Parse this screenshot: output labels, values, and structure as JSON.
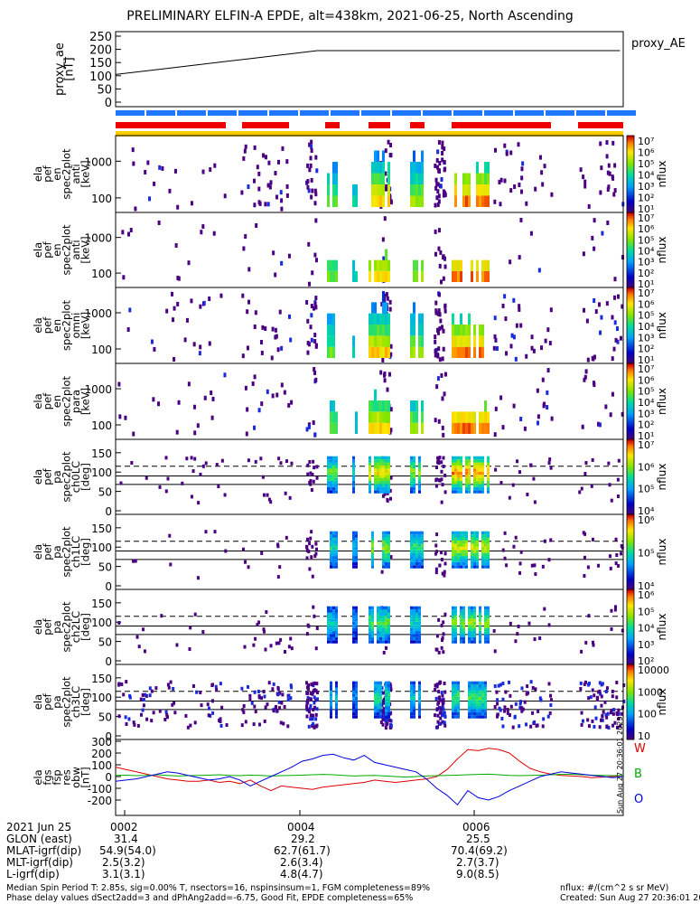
{
  "title": "PRELIMINARY ELFIN-A EPDE, alt=438km, 2021-06-25, North Ascending",
  "created_vertical": "Sun Aug 27 20:36:01 2023",
  "panels": [
    {
      "ylabel": [
        "proxy_ae",
        "[nT]"
      ],
      "ticks": [
        "250",
        "200",
        "150",
        "100",
        "50",
        "0"
      ],
      "right": "proxy_AE"
    },
    {
      "ylabel": [
        "ela",
        "pef",
        "en",
        "spec2plot",
        "anti",
        "[keV]"
      ],
      "ticks": [
        "1000",
        "100"
      ],
      "cb": [
        "10⁷",
        "10⁶",
        "10⁵",
        "10⁴",
        "10³",
        "10²",
        "10¹"
      ],
      "cblabel": "nflux"
    },
    {
      "ylabel": [
        "ela",
        "pef",
        "en",
        "spec2plot",
        "anti",
        "[keV]"
      ],
      "ticks": [
        "1000",
        "100"
      ],
      "cb": [
        "10⁷",
        "10⁶",
        "10⁵",
        "10⁴",
        "10³",
        "10²",
        "10¹"
      ],
      "cblabel": "nflux"
    },
    {
      "ylabel": [
        "ela",
        "pef",
        "en",
        "spec2plot",
        "omni",
        "[keV]"
      ],
      "ticks": [
        "1000",
        "100"
      ],
      "cb": [
        "10⁷",
        "10⁶",
        "10⁵",
        "10⁴",
        "10³",
        "10²",
        "10¹"
      ],
      "cblabel": "nflux"
    },
    {
      "ylabel": [
        "ela",
        "pef",
        "en",
        "spec2plot",
        "para",
        "[keV]"
      ],
      "ticks": [
        "1000",
        "100"
      ],
      "cb": [
        "10⁷",
        "10⁶",
        "10⁵",
        "10⁴",
        "10³",
        "10²",
        "10¹"
      ],
      "cblabel": "nflux"
    },
    {
      "ylabel": [
        "ela",
        "pef",
        "pa",
        "spec2plot",
        "ch0LC",
        "[deg]"
      ],
      "ticks": [
        "150",
        "100",
        "50",
        "0"
      ],
      "cb": [
        "10⁷",
        "10⁶",
        "10⁵",
        "10⁴"
      ],
      "cblabel": "nflux"
    },
    {
      "ylabel": [
        "ela",
        "pef",
        "pa",
        "spec2plot",
        "ch1LC",
        "[deg]"
      ],
      "ticks": [
        "150",
        "100",
        "50",
        "0"
      ],
      "cb": [
        "10⁶",
        "10⁵",
        "10⁴"
      ],
      "cblabel": "nflux"
    },
    {
      "ylabel": [
        "ela",
        "pef",
        "pa",
        "spec2plot",
        "ch2LC",
        "[deg]"
      ],
      "ticks": [
        "150",
        "100",
        "50",
        "0"
      ],
      "cb": [
        "10⁶",
        "10⁵",
        "10⁴",
        "10³",
        "10²"
      ],
      "cblabel": "nflux"
    },
    {
      "ylabel": [
        "ela",
        "pef",
        "pa",
        "spec2plot",
        "ch3LC",
        "[deg]"
      ],
      "ticks": [
        "150",
        "100",
        "50",
        "0"
      ],
      "cb": [
        "10000",
        "1000",
        "100",
        "10"
      ],
      "cblabel": "nflux"
    },
    {
      "ylabel": [
        "ela",
        "fgs",
        "fsp",
        "res",
        "obw",
        "[nT]"
      ],
      "ticks": [
        "300",
        "200",
        "100",
        "0",
        "-100",
        "-200"
      ],
      "legend": [
        "W",
        "B",
        "O"
      ]
    }
  ],
  "footer": {
    "rows": [
      [
        "2021 Jun 25",
        "0002",
        "0004",
        "0006"
      ],
      [
        "GLON (east)",
        "31.4",
        "29.2",
        "25.5"
      ],
      [
        "MLAT-igrf(dip)",
        "54.9(54.0)",
        "62.7(61.7)",
        "70.4(69.2)"
      ],
      [
        "MLT-igrf(dip)",
        "2.5(3.2)",
        "2.6(3.4)",
        "2.7(3.7)"
      ],
      [
        "L-igrf(dip)",
        "3.1(3.1)",
        "4.8(4.7)",
        "9.0(8.5)"
      ]
    ],
    "note1": "Median Spin Period T: 2.85s, sig=0.00% T, nsectors=16, nspinsinsum=1, FGM completeness=89%",
    "note2": "Phase delay values dSect2add=3 and dPhAng2add=-6.75, Good Fit, EPDE completeness=65%",
    "units": "nflux: #/(cm^2 s sr MeV)",
    "created": "Created: Sun Aug 27 20:36:01 2023"
  },
  "chart_data": {
    "type": "line",
    "title": "PRELIMINARY ELFIN-A EPDE, alt=438km, 2021-06-25, North Ascending",
    "x_ticks": [
      "0002",
      "0004",
      "0006"
    ],
    "proxy_ae": {
      "ylabel": "proxy_ae [nT]",
      "ylim": [
        0,
        250
      ],
      "x_min": [
        0,
        1,
        2,
        3,
        4,
        5,
        6,
        7,
        7.5
      ],
      "values": [
        105,
        135,
        165,
        195,
        195,
        195,
        195,
        195,
        195
      ]
    },
    "fgs_residuals": {
      "ylabel": "[nT]",
      "ylim": [
        -300,
        300
      ],
      "series": [
        {
          "name": "W",
          "color": "#dd0000",
          "values": [
            80,
            60,
            40,
            20,
            0,
            -20,
            -30,
            -40,
            -40,
            -30,
            -50,
            -40,
            -60,
            -30,
            -80,
            -120,
            -80,
            -90,
            -100,
            -110,
            -90,
            -80,
            -70,
            -60,
            -50,
            -30,
            -40,
            -50,
            -40,
            -30,
            -20,
            0,
            60,
            150,
            230,
            220,
            240,
            230,
            200,
            130,
            70,
            40,
            20,
            10,
            5,
            0,
            -10,
            -5,
            0,
            10
          ]
        },
        {
          "name": "B",
          "color": "#00aa00",
          "values": [
            10,
            12,
            8,
            10,
            15,
            10,
            5,
            8,
            10,
            12,
            15,
            10,
            8,
            12,
            10,
            5,
            8,
            10,
            12,
            15,
            18,
            15,
            10,
            5,
            8,
            10,
            5,
            0,
            -5,
            0,
            5,
            8,
            10,
            12,
            15,
            18,
            20,
            15,
            10,
            8,
            10,
            12,
            15,
            18,
            20,
            15,
            12,
            10,
            8,
            10
          ]
        },
        {
          "name": "O",
          "color": "#0000dd",
          "values": [
            -40,
            -30,
            -20,
            0,
            20,
            40,
            30,
            10,
            -10,
            -30,
            -20,
            0,
            -30,
            -80,
            -40,
            0,
            40,
            80,
            130,
            150,
            180,
            190,
            160,
            140,
            180,
            120,
            100,
            80,
            60,
            40,
            -20,
            -100,
            -160,
            -240,
            -120,
            -180,
            -200,
            -170,
            -120,
            -80,
            -40,
            0,
            20,
            40,
            30,
            20,
            10,
            0,
            -10,
            0
          ]
        }
      ]
    }
  }
}
